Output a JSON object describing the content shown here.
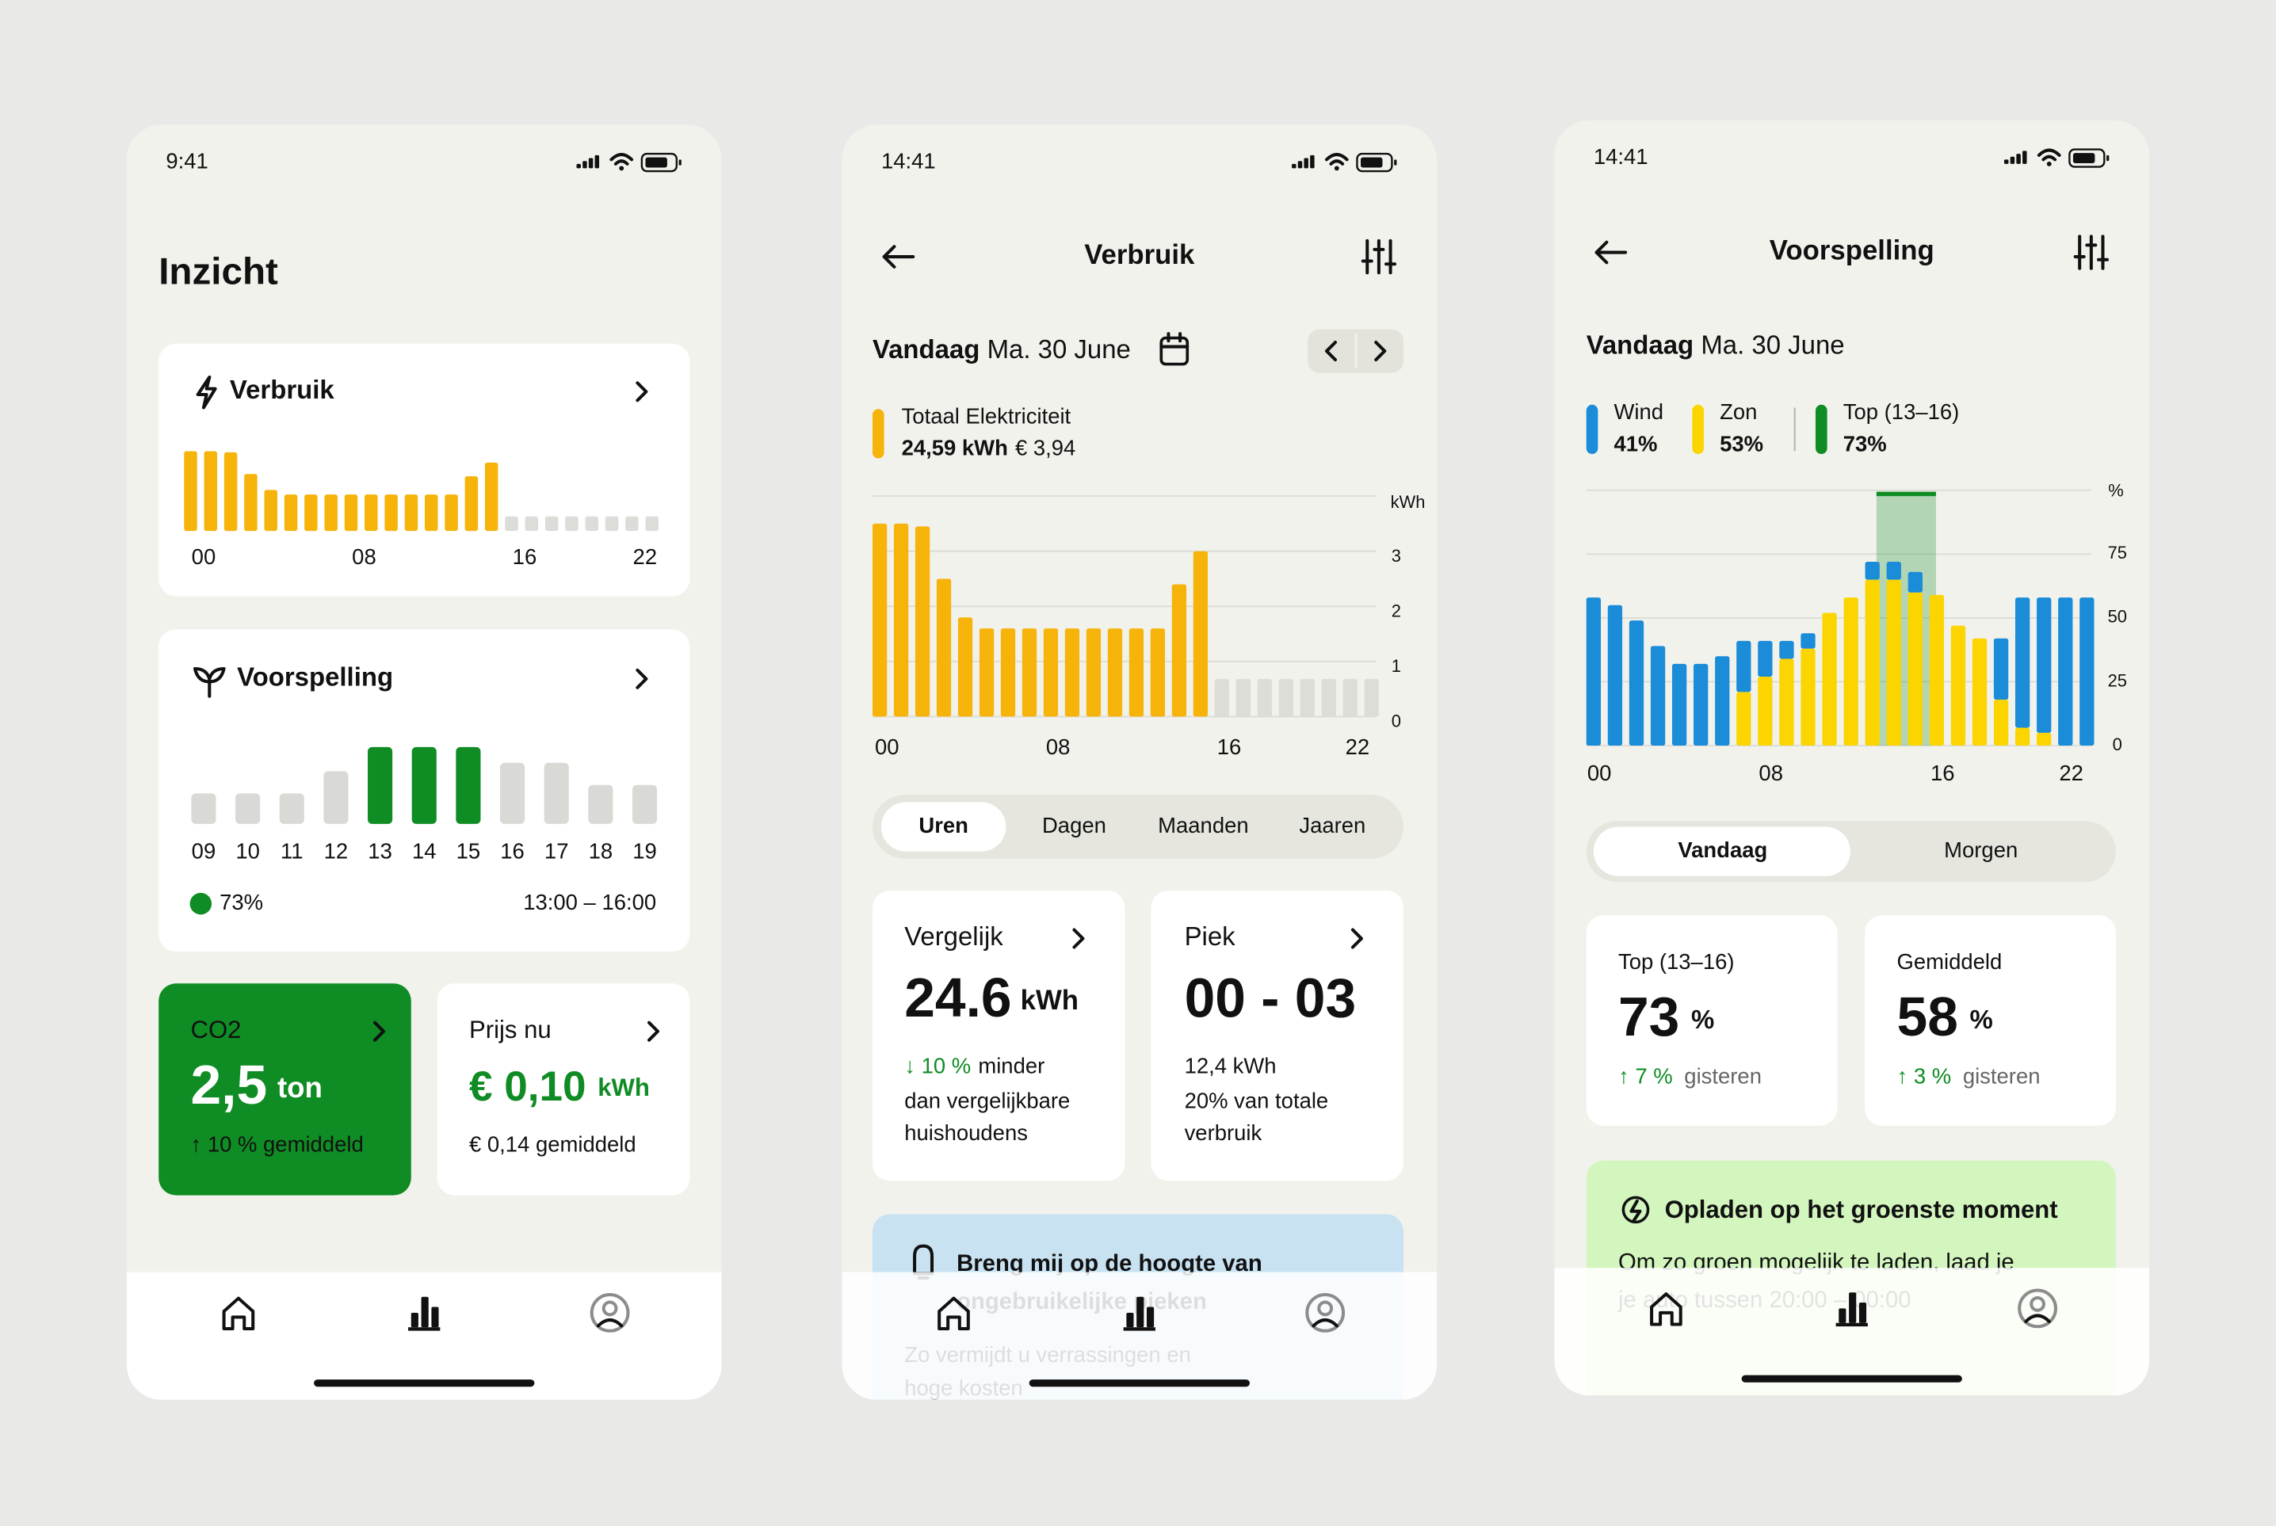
{
  "screens": [
    {
      "time": "9:41",
      "title": "Inzicht",
      "usage_card": {
        "title": "Verbruik",
        "hour_labels": [
          "00",
          "08",
          "16",
          "22"
        ]
      },
      "forecast_card": {
        "title": "Voorspelling",
        "hours": [
          "09",
          "10",
          "11",
          "12",
          "13",
          "14",
          "15",
          "16",
          "17",
          "18",
          "19"
        ],
        "values": [
          29,
          29,
          29,
          50,
          73,
          73,
          73,
          58,
          58,
          37,
          37
        ],
        "colors": [
          "#d9d9d5",
          "#d9d9d5",
          "#d9d9d5",
          "#d9d9d5",
          "#0f8c24",
          "#0f8c24",
          "#0f8c24",
          "#d9d9d5",
          "#d9d9d5",
          "#d9d9d5",
          "#d9d9d5"
        ],
        "legend": "73%",
        "range": "13:00 – 16:00"
      },
      "co2_card": {
        "label": "CO2",
        "value": "2,5",
        "unit": "ton",
        "note": "↑ 10 % gemiddeld"
      },
      "price_card": {
        "label": "Prijs nu",
        "value": "€ 0,10",
        "unit": "kWh",
        "note": "€ 0,14 gemiddeld"
      }
    },
    {
      "time": "14:41",
      "title": "Verbruik",
      "date_prefix": "Vandaag",
      "date": "Ma. 30 June",
      "total": {
        "label": "Totaal Elektriciteit",
        "kwh": "24,59 kWh",
        "price": "€ 3,94"
      },
      "chart": {
        "unit": "kWh",
        "ylim": [
          0,
          4
        ],
        "yticks": [
          0,
          1,
          2,
          3
        ],
        "color": "#f6b40b",
        "values": [
          3.5,
          3.5,
          3.45,
          2.5,
          1.8,
          1.6,
          1.6,
          1.6,
          1.6,
          1.6,
          1.6,
          1.6,
          1.6,
          1.6,
          2.4,
          3.0,
          null,
          null,
          null,
          null,
          null,
          null,
          null,
          null
        ],
        "hour_labels": [
          "00",
          "08",
          "16",
          "22"
        ]
      },
      "tabs": [
        "Uren",
        "Dagen",
        "Maanden",
        "Jaaren"
      ],
      "compare_card": {
        "title": "Vergelijk",
        "value": "24.6",
        "unit": "kWh",
        "delta": "↓ 10 %",
        "delta_text": "minder",
        "lines": [
          "dan vergelijkbare",
          "huishoudens"
        ]
      },
      "peak_card": {
        "title": "Piek",
        "value": "00 - 03",
        "kwh": "12,4 kWh",
        "lines": [
          "20% van totale",
          "verbruik"
        ]
      },
      "banner": {
        "title": [
          "Breng mij op de hoogte van",
          "ongebruikelijke pieken"
        ],
        "lines": [
          "Zo vermijdt u verrassingen en",
          "hoge kosten"
        ]
      }
    },
    {
      "time": "14:41",
      "title": "Voorspelling",
      "date_prefix": "Vandaag",
      "date": "Ma. 30 June",
      "legend": [
        {
          "name": "Wind",
          "value": "41%",
          "color": "#1a8cd8"
        },
        {
          "name": "Zon",
          "value": "53%",
          "color": "#fcd500"
        },
        {
          "name": "Top (13–16)",
          "value": "73%",
          "color": "#0f8c24"
        }
      ],
      "chart": {
        "unit": "%",
        "ylim": [
          0,
          100
        ],
        "yticks": [
          0,
          25,
          50,
          75
        ],
        "series": [
          {
            "name": "Zon",
            "color": "#fcd500",
            "values": [
              0,
              0,
              0,
              0,
              0,
              0,
              0,
              21,
              27,
              34,
              38,
              52,
              58,
              65,
              65,
              60,
              59,
              47,
              42,
              18,
              7,
              5,
              0,
              0
            ]
          },
          {
            "name": "Wind",
            "color": "#1a8cd8",
            "values": [
              58,
              55,
              49,
              39,
              32,
              32,
              35,
              20,
              14,
              7,
              6,
              0,
              0,
              7,
              7,
              8,
              0,
              0,
              0,
              24,
              51,
              53,
              58,
              58
            ]
          }
        ],
        "hour_labels": [
          "00",
          "08",
          "16",
          "22"
        ]
      },
      "tabs": [
        "Vandaag",
        "Morgen"
      ],
      "cards": [
        {
          "title": "Top (13–16)",
          "value": "73",
          "unit": "%",
          "delta": "↑ 7 %",
          "text": "gisteren"
        },
        {
          "title": "Gemiddeld",
          "value": "58",
          "unit": "%",
          "delta": "↑ 3 %",
          "text": "gisteren"
        }
      ],
      "banner": {
        "title": "Opladen op het groenste moment",
        "lines": [
          "Om zo groen mogelijk te laden, laad je",
          "je auto tussen 20:00 – 00:00"
        ]
      }
    }
  ]
}
